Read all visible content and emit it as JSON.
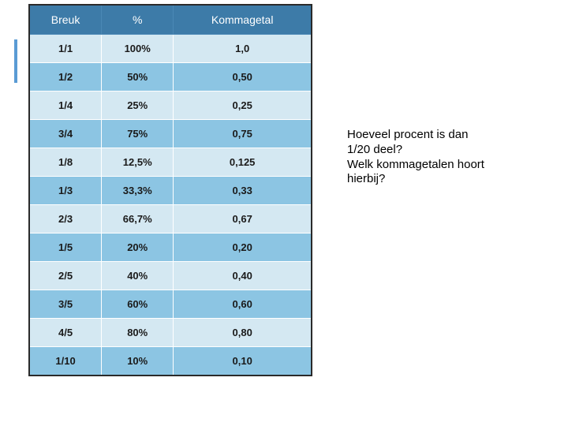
{
  "table": {
    "header_bg": "#3d7ba8",
    "header_fg": "#ffffff",
    "row_light_bg": "#d4e8f2",
    "row_dark_bg": "#8cc5e3",
    "border_color": "#2a2a2a",
    "columns": [
      "Breuk",
      "%",
      "Kommagetal"
    ],
    "rows": [
      {
        "cells": [
          "1/1",
          "100%",
          "1,0"
        ],
        "shade": "light"
      },
      {
        "cells": [
          "1/2",
          "50%",
          "0,50"
        ],
        "shade": "dark"
      },
      {
        "cells": [
          "1/4",
          "25%",
          "0,25"
        ],
        "shade": "light"
      },
      {
        "cells": [
          "3/4",
          "75%",
          "0,75"
        ],
        "shade": "dark"
      },
      {
        "cells": [
          "1/8",
          "12,5%",
          "0,125"
        ],
        "shade": "light"
      },
      {
        "cells": [
          "1/3",
          "33,3%",
          "0,33"
        ],
        "shade": "dark"
      },
      {
        "cells": [
          "2/3",
          "66,7%",
          "0,67"
        ],
        "shade": "light"
      },
      {
        "cells": [
          "1/5",
          "20%",
          "0,20"
        ],
        "shade": "dark"
      },
      {
        "cells": [
          "2/5",
          "40%",
          "0,40"
        ],
        "shade": "light"
      },
      {
        "cells": [
          "3/5",
          "60%",
          "0,60"
        ],
        "shade": "dark"
      },
      {
        "cells": [
          "4/5",
          "80%",
          "0,80"
        ],
        "shade": "light"
      },
      {
        "cells": [
          "1/10",
          "10%",
          "0,10"
        ],
        "shade": "dark"
      }
    ]
  },
  "question": {
    "line1": "Hoeveel procent is dan",
    "line2": "1/20 deel?",
    "line3": "Welk kommagetalen hoort",
    "line4": "hierbij?"
  },
  "accent_bar_color": "#5a9bd4"
}
